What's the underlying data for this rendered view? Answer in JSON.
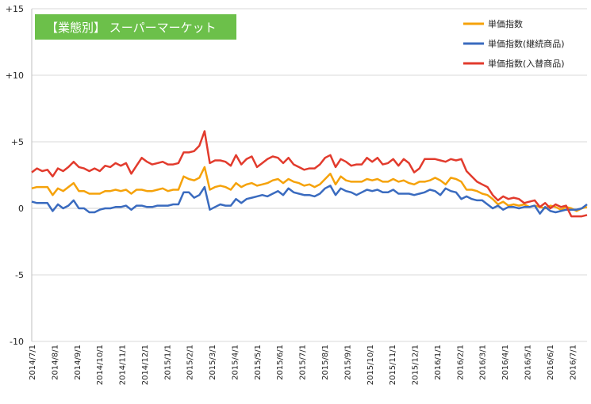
{
  "chart_data": {
    "type": "line",
    "title": "【業態別】 スーパーマーケット",
    "title_bg_color": "#6cc04a",
    "ylim": [
      -10,
      15
    ],
    "yticks": [
      {
        "value": 15,
        "label": "+15"
      },
      {
        "value": 10,
        "label": "+10"
      },
      {
        "value": 5,
        "label": "+5"
      },
      {
        "value": 0,
        "label": "0"
      },
      {
        "value": -5,
        "label": "-5"
      },
      {
        "value": -10,
        "label": "-10"
      }
    ],
    "xtick_labels": [
      "2014/7/1",
      "2014/8/1",
      "2014/9/1",
      "2014/10/1",
      "2014/11/1",
      "2014/12/1",
      "2015/1/1",
      "2015/2/1",
      "2015/3/1",
      "2015/4/1",
      "2015/5/1",
      "2015/6/1",
      "2015/7/1",
      "2015/8/1",
      "2015/9/1",
      "2015/10/1",
      "2015/11/1",
      "2015/12/1",
      "2016/1/1",
      "2016/2/1",
      "2016/3/1",
      "2016/4/1",
      "2016/5/1",
      "2016/6/1",
      "2016/7/1"
    ],
    "grid": "horizontal",
    "legend_position": "top-right",
    "series": [
      {
        "name": "単価指数",
        "color": "#f5a20a",
        "values": [
          1.5,
          1.6,
          1.6,
          1.6,
          1.0,
          1.5,
          1.3,
          1.6,
          1.9,
          1.3,
          1.3,
          1.1,
          1.1,
          1.1,
          1.3,
          1.3,
          1.4,
          1.3,
          1.4,
          1.1,
          1.4,
          1.4,
          1.3,
          1.3,
          1.4,
          1.5,
          1.3,
          1.4,
          1.4,
          2.4,
          2.2,
          2.1,
          2.3,
          3.1,
          1.4,
          1.6,
          1.7,
          1.6,
          1.4,
          1.9,
          1.6,
          1.8,
          1.9,
          1.7,
          1.8,
          1.9,
          2.1,
          2.2,
          1.9,
          2.2,
          2.0,
          1.9,
          1.7,
          1.8,
          1.6,
          1.8,
          2.2,
          2.6,
          1.8,
          2.4,
          2.1,
          2.0,
          2.0,
          2.0,
          2.2,
          2.1,
          2.2,
          2.0,
          2.0,
          2.2,
          2.0,
          2.1,
          1.9,
          1.8,
          2.0,
          2.0,
          2.1,
          2.3,
          2.1,
          1.8,
          2.3,
          2.2,
          2.0,
          1.4,
          1.4,
          1.3,
          1.1,
          1.0,
          0.7,
          0.3,
          0.5,
          0.2,
          0.3,
          0.2,
          0.3,
          0.1,
          0.2,
          0.1,
          0.0,
          0.2,
          0.1,
          -0.1,
          0.1,
          0.0,
          -0.2,
          0.0,
          0.1
        ]
      },
      {
        "name": "単価指数(継続商品)",
        "color": "#3a6bbf",
        "values": [
          0.5,
          0.4,
          0.4,
          0.4,
          -0.2,
          0.3,
          0.0,
          0.2,
          0.6,
          0.0,
          0.0,
          -0.3,
          -0.3,
          -0.1,
          0.0,
          0.0,
          0.1,
          0.1,
          0.2,
          -0.1,
          0.2,
          0.2,
          0.1,
          0.1,
          0.2,
          0.2,
          0.2,
          0.3,
          0.3,
          1.2,
          1.2,
          0.8,
          1.0,
          1.6,
          -0.1,
          0.1,
          0.3,
          0.2,
          0.2,
          0.7,
          0.4,
          0.7,
          0.8,
          0.9,
          1.0,
          0.9,
          1.1,
          1.3,
          1.0,
          1.5,
          1.2,
          1.1,
          1.0,
          1.0,
          0.9,
          1.1,
          1.5,
          1.7,
          1.0,
          1.5,
          1.3,
          1.2,
          1.0,
          1.2,
          1.4,
          1.3,
          1.4,
          1.2,
          1.2,
          1.4,
          1.1,
          1.1,
          1.1,
          1.0,
          1.1,
          1.2,
          1.4,
          1.3,
          1.0,
          1.5,
          1.3,
          1.2,
          0.7,
          0.9,
          0.7,
          0.6,
          0.6,
          0.3,
          0.0,
          0.2,
          -0.1,
          0.1,
          0.1,
          0.0,
          0.1,
          0.1,
          0.2,
          -0.4,
          0.1,
          -0.2,
          -0.3,
          -0.2,
          -0.1,
          -0.1,
          -0.1,
          0.0,
          0.3
        ]
      },
      {
        "name": "単価指数(入替商品)",
        "color": "#e23b2d",
        "values": [
          2.7,
          3.0,
          2.8,
          2.9,
          2.4,
          3.0,
          2.8,
          3.1,
          3.5,
          3.1,
          3.0,
          2.8,
          3.0,
          2.8,
          3.2,
          3.1,
          3.4,
          3.2,
          3.4,
          2.6,
          3.2,
          3.8,
          3.5,
          3.3,
          3.4,
          3.5,
          3.3,
          3.3,
          3.4,
          4.2,
          4.2,
          4.3,
          4.7,
          5.8,
          3.4,
          3.6,
          3.6,
          3.5,
          3.2,
          4.0,
          3.3,
          3.7,
          3.9,
          3.1,
          3.4,
          3.7,
          3.9,
          3.8,
          3.4,
          3.8,
          3.3,
          3.1,
          2.9,
          3.0,
          3.0,
          3.3,
          3.8,
          4.0,
          3.1,
          3.7,
          3.5,
          3.2,
          3.3,
          3.3,
          3.8,
          3.5,
          3.8,
          3.3,
          3.4,
          3.7,
          3.2,
          3.7,
          3.4,
          2.7,
          3.0,
          3.7,
          3.7,
          3.7,
          3.6,
          3.5,
          3.7,
          3.6,
          3.7,
          2.8,
          2.4,
          2.0,
          1.8,
          1.6,
          1.0,
          0.6,
          0.9,
          0.7,
          0.8,
          0.7,
          0.4,
          0.5,
          0.6,
          0.1,
          0.4,
          0.0,
          0.3,
          0.1,
          0.2,
          -0.6,
          -0.6,
          -0.6,
          -0.5
        ]
      }
    ]
  }
}
